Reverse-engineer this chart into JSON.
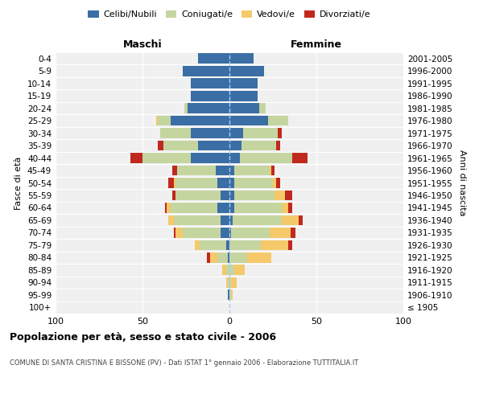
{
  "age_groups": [
    "100+",
    "95-99",
    "90-94",
    "85-89",
    "80-84",
    "75-79",
    "70-74",
    "65-69",
    "60-64",
    "55-59",
    "50-54",
    "45-49",
    "40-44",
    "35-39",
    "30-34",
    "25-29",
    "20-24",
    "15-19",
    "10-14",
    "5-9",
    "0-4"
  ],
  "birth_years": [
    "≤ 1905",
    "1906-1910",
    "1911-1915",
    "1916-1920",
    "1921-1925",
    "1926-1930",
    "1931-1935",
    "1936-1940",
    "1941-1945",
    "1946-1950",
    "1951-1955",
    "1956-1960",
    "1961-1965",
    "1966-1970",
    "1971-1975",
    "1976-1980",
    "1981-1985",
    "1986-1990",
    "1991-1995",
    "1996-2000",
    "2001-2005"
  ],
  "maschi": {
    "celibi": [
      0,
      1,
      0,
      0,
      1,
      2,
      5,
      5,
      7,
      5,
      7,
      8,
      22,
      18,
      22,
      34,
      24,
      22,
      22,
      27,
      18
    ],
    "coniugati": [
      0,
      0,
      1,
      2,
      6,
      15,
      22,
      27,
      27,
      26,
      24,
      22,
      28,
      20,
      18,
      7,
      2,
      0,
      0,
      0,
      0
    ],
    "vedovi": [
      0,
      0,
      1,
      2,
      4,
      3,
      4,
      3,
      2,
      0,
      1,
      0,
      0,
      0,
      0,
      1,
      0,
      0,
      0,
      0,
      0
    ],
    "divorziati": [
      0,
      0,
      0,
      0,
      2,
      0,
      1,
      0,
      1,
      2,
      3,
      3,
      7,
      3,
      0,
      0,
      0,
      0,
      0,
      0,
      0
    ]
  },
  "femmine": {
    "nubili": [
      0,
      0,
      0,
      0,
      0,
      0,
      1,
      2,
      3,
      3,
      3,
      3,
      6,
      7,
      8,
      22,
      17,
      16,
      16,
      20,
      14
    ],
    "coniugate": [
      0,
      1,
      1,
      3,
      10,
      18,
      22,
      28,
      27,
      23,
      22,
      20,
      30,
      20,
      20,
      12,
      4,
      0,
      0,
      0,
      0
    ],
    "vedove": [
      0,
      1,
      3,
      6,
      14,
      16,
      12,
      10,
      4,
      6,
      2,
      1,
      0,
      0,
      0,
      0,
      0,
      0,
      0,
      0,
      0
    ],
    "divorziate": [
      0,
      0,
      0,
      0,
      0,
      2,
      3,
      2,
      2,
      4,
      2,
      2,
      9,
      2,
      2,
      0,
      0,
      0,
      0,
      0,
      0
    ]
  },
  "color_celibi": "#3a6ea5",
  "color_coniugati": "#c5d5a0",
  "color_vedovi": "#f5c96a",
  "color_divorziati": "#c0291e",
  "title": "Popolazione per età, sesso e stato civile - 2006",
  "subtitle": "COMUNE DI SANTA CRISTINA E BISSONE (PV) - Dati ISTAT 1° gennaio 2006 - Elaborazione TUTTITALIA.IT",
  "xlabel_left": "Maschi",
  "xlabel_right": "Femmine",
  "ylabel_left": "Fasce di età",
  "ylabel_right": "Anni di nascita",
  "xlim": 100,
  "bg_color": "#ffffff",
  "plot_bg_color": "#f0f0f0"
}
